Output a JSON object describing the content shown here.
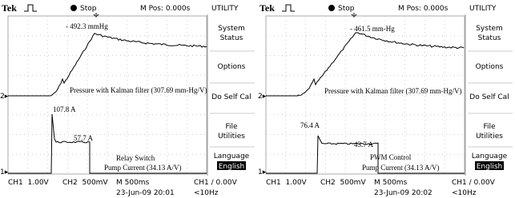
{
  "panels": [
    {
      "header": {
        "brand": "Tek",
        "status": "Stop",
        "position": "M Pos: 0.000s",
        "menu_title": "UTILITY"
      },
      "menu": [
        [
          "System",
          "Status"
        ],
        [
          "Options"
        ],
        [
          "Do Self Cal"
        ],
        [
          "File",
          "Utilities"
        ],
        [
          "Language"
        ]
      ],
      "language_value": "English",
      "markers": {
        "ch2": "2▸",
        "ch1": "1▸"
      },
      "annotations": {
        "pressure_peak": "- 492.3 mmHg",
        "pressure_label": "Pressure with Kalman filter (307.69 mm-Hg/V)",
        "current_peak": "107.8 A",
        "current_plateau": "57.7 A",
        "control_mode": "Relay Switch",
        "current_label": "Pump Current (34.13 A/V)"
      },
      "footer": {
        "ch1": "CH1  1.00V",
        "ch2": "CH2  500mV",
        "timebase": "M 500ms",
        "trigger": "CH1 / 0.00V",
        "date": "23-Jun-09 20:01",
        "frequency": "<10Hz"
      }
    },
    {
      "header": {
        "brand": "Tek",
        "status": "Stop",
        "position": "M Pos: 0.000s",
        "menu_title": "UTILITY"
      },
      "menu": [
        [
          "System",
          "Status"
        ],
        [
          "Options"
        ],
        [
          "Do Self Cal"
        ],
        [
          "File",
          "Utilities"
        ],
        [
          "Language"
        ]
      ],
      "language_value": "English",
      "markers": {
        "ch2": "2▸",
        "ch1": "1▸"
      },
      "annotations": {
        "pressure_peak": "- 461.5 mm-Hg",
        "pressure_label": "Pressure with Kalman filter (307.69 mm-Hg/V)",
        "current_peak": "76.4 A",
        "current_plateau": "43.7 A",
        "control_mode": "PWM Control",
        "current_label": "Pump Current (34.13 A/V)"
      },
      "footer": {
        "ch1": "CH1  1.00V",
        "ch2": "CH2  500mV",
        "timebase": "M 500ms",
        "trigger": "CH1 / 0.00V",
        "date": "23-Jun-09 20:02",
        "frequency": "<10Hz"
      }
    }
  ]
}
